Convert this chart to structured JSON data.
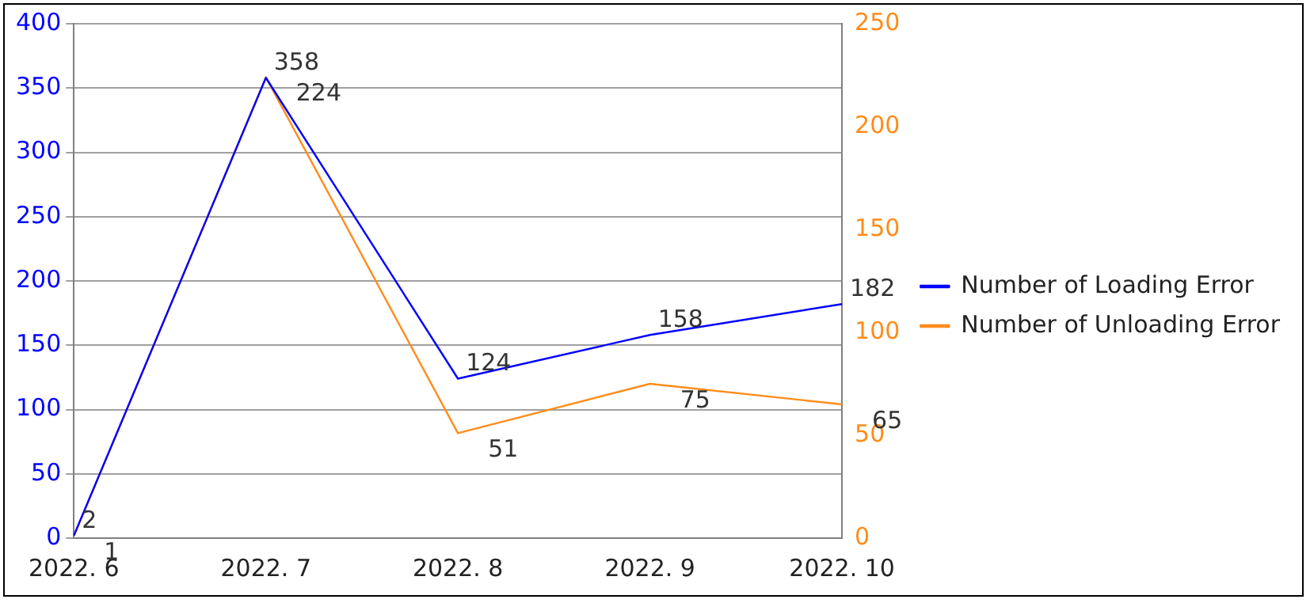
{
  "chart_data": {
    "type": "line",
    "categories": [
      "2022. 6",
      "2022. 7",
      "2022. 8",
      "2022. 9",
      "2022. 10"
    ],
    "series": [
      {
        "name": "Number of Loading Error",
        "color": "#0000ff",
        "values": [
          2,
          358,
          124,
          158,
          182
        ]
      },
      {
        "name": "Number of Unloading Error",
        "color": "#ff8c1a",
        "axis": "y2",
        "values": [
          1,
          224,
          51,
          75,
          65
        ]
      }
    ],
    "ylim": [
      0,
      400
    ],
    "yticks": [
      0,
      50,
      100,
      150,
      200,
      250,
      300,
      350,
      400
    ],
    "y2lim": [
      0,
      250
    ],
    "y2ticks": [
      0,
      50,
      100,
      150,
      200,
      250
    ],
    "grid": "y",
    "legend": "right",
    "data_labels": true,
    "marker": "none"
  }
}
